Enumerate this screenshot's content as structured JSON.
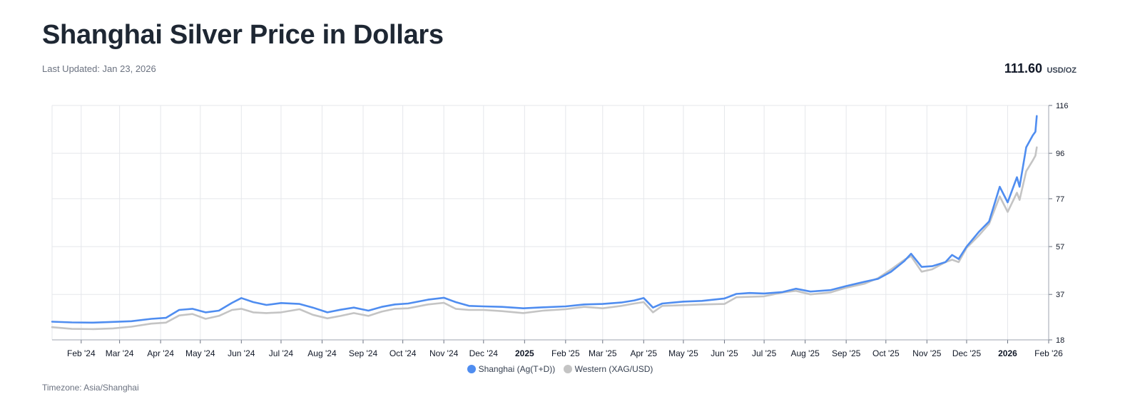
{
  "header": {
    "title": "Shanghai Silver Price in Dollars",
    "last_updated": "Last Updated: Jan 23, 2026",
    "price_value": "111.60",
    "price_unit": "USD/OZ"
  },
  "footer": {
    "timezone": "Timezone: Asia/Shanghai"
  },
  "colors": {
    "shanghai": "#4f8df0",
    "western": "#c4c4c4",
    "grid": "#e5e7eb"
  },
  "chart_data": {
    "type": "line",
    "title": "Shanghai Silver Price in Dollars",
    "xlabel": "",
    "ylabel": "",
    "grid": true,
    "legend_position": "bottom-center",
    "y_axis_position": "right",
    "ylim": [
      18,
      116
    ],
    "yticks": [
      "116",
      "96",
      "77",
      "57",
      "37",
      "18"
    ],
    "xlim": [
      "2024-01-10",
      "2026-02-01"
    ],
    "xticks": [
      {
        "date": "2024-02-01",
        "label": "Feb '24"
      },
      {
        "date": "2024-03-01",
        "label": "Mar '24"
      },
      {
        "date": "2024-04-01",
        "label": "Apr '24"
      },
      {
        "date": "2024-05-01",
        "label": "May '24"
      },
      {
        "date": "2024-06-01",
        "label": "Jun '24"
      },
      {
        "date": "2024-07-01",
        "label": "Jul '24"
      },
      {
        "date": "2024-08-01",
        "label": "Aug '24"
      },
      {
        "date": "2024-09-01",
        "label": "Sep '24"
      },
      {
        "date": "2024-10-01",
        "label": "Oct '24"
      },
      {
        "date": "2024-11-01",
        "label": "Nov '24"
      },
      {
        "date": "2024-12-01",
        "label": "Dec '24"
      },
      {
        "date": "2025-01-01",
        "label": "2025",
        "bold": true
      },
      {
        "date": "2025-02-01",
        "label": "Feb '25"
      },
      {
        "date": "2025-03-01",
        "label": "Mar '25"
      },
      {
        "date": "2025-04-01",
        "label": "Apr '25"
      },
      {
        "date": "2025-05-01",
        "label": "May '25"
      },
      {
        "date": "2025-06-01",
        "label": "Jun '25"
      },
      {
        "date": "2025-07-01",
        "label": "Jul '25"
      },
      {
        "date": "2025-08-01",
        "label": "Aug '25"
      },
      {
        "date": "2025-09-01",
        "label": "Sep '25"
      },
      {
        "date": "2025-10-01",
        "label": "Oct '25"
      },
      {
        "date": "2025-11-01",
        "label": "Nov '25"
      },
      {
        "date": "2025-12-01",
        "label": "Dec '25"
      },
      {
        "date": "2026-01-01",
        "label": "2026",
        "bold": true
      },
      {
        "date": "2026-02-01",
        "label": "Feb '26"
      }
    ],
    "series": [
      {
        "name": "Shanghai (Ag(T+D))",
        "points": [
          [
            "2024-01-10",
            25.6
          ],
          [
            "2024-01-25",
            25.3
          ],
          [
            "2024-02-10",
            25.2
          ],
          [
            "2024-02-25",
            25.5
          ],
          [
            "2024-03-10",
            25.8
          ],
          [
            "2024-03-25",
            26.8
          ],
          [
            "2024-04-05",
            27.2
          ],
          [
            "2024-04-15",
            30.5
          ],
          [
            "2024-04-25",
            31.0
          ],
          [
            "2024-05-05",
            29.5
          ],
          [
            "2024-05-15",
            30.2
          ],
          [
            "2024-05-25",
            33.5
          ],
          [
            "2024-06-01",
            35.5
          ],
          [
            "2024-06-10",
            33.8
          ],
          [
            "2024-06-20",
            32.6
          ],
          [
            "2024-07-01",
            33.4
          ],
          [
            "2024-07-15",
            33.0
          ],
          [
            "2024-07-25",
            31.5
          ],
          [
            "2024-08-05",
            29.5
          ],
          [
            "2024-08-15",
            30.6
          ],
          [
            "2024-08-25",
            31.5
          ],
          [
            "2024-09-05",
            30.2
          ],
          [
            "2024-09-15",
            31.8
          ],
          [
            "2024-09-25",
            32.8
          ],
          [
            "2024-10-05",
            33.2
          ],
          [
            "2024-10-20",
            34.8
          ],
          [
            "2024-11-01",
            35.6
          ],
          [
            "2024-11-10",
            33.8
          ],
          [
            "2024-11-20",
            32.2
          ],
          [
            "2024-12-01",
            32.0
          ],
          [
            "2024-12-15",
            31.8
          ],
          [
            "2024-12-31",
            31.2
          ],
          [
            "2025-01-15",
            31.6
          ],
          [
            "2025-02-01",
            32.0
          ],
          [
            "2025-02-15",
            32.8
          ],
          [
            "2025-03-01",
            33.0
          ],
          [
            "2025-03-15",
            33.6
          ],
          [
            "2025-03-25",
            34.5
          ],
          [
            "2025-04-01",
            35.5
          ],
          [
            "2025-04-08",
            31.5
          ],
          [
            "2025-04-15",
            33.2
          ],
          [
            "2025-05-01",
            34.0
          ],
          [
            "2025-05-15",
            34.3
          ],
          [
            "2025-06-01",
            35.3
          ],
          [
            "2025-06-10",
            37.2
          ],
          [
            "2025-06-20",
            37.6
          ],
          [
            "2025-07-01",
            37.4
          ],
          [
            "2025-07-15",
            38.0
          ],
          [
            "2025-07-25",
            39.4
          ],
          [
            "2025-08-05",
            38.2
          ],
          [
            "2025-08-20",
            38.8
          ],
          [
            "2025-09-01",
            40.5
          ],
          [
            "2025-09-15",
            42.3
          ],
          [
            "2025-09-25",
            43.5
          ],
          [
            "2025-10-05",
            46.5
          ],
          [
            "2025-10-15",
            51.0
          ],
          [
            "2025-10-20",
            54.0
          ],
          [
            "2025-10-28",
            48.5
          ],
          [
            "2025-11-05",
            48.8
          ],
          [
            "2025-11-15",
            50.5
          ],
          [
            "2025-11-20",
            53.5
          ],
          [
            "2025-11-25",
            51.8
          ],
          [
            "2025-12-01",
            57.0
          ],
          [
            "2025-12-10",
            63.0
          ],
          [
            "2025-12-18",
            67.5
          ],
          [
            "2025-12-26",
            82.0
          ],
          [
            "2026-01-01",
            75.5
          ],
          [
            "2026-01-08",
            86.0
          ],
          [
            "2026-01-10",
            82.0
          ],
          [
            "2026-01-15",
            98.5
          ],
          [
            "2026-01-20",
            103.5
          ],
          [
            "2026-01-22",
            105.0
          ],
          [
            "2026-01-23",
            111.6
          ]
        ]
      },
      {
        "name": "Western (XAG/USD)",
        "points": [
          [
            "2024-01-10",
            23.3
          ],
          [
            "2024-01-25",
            22.6
          ],
          [
            "2024-02-10",
            22.5
          ],
          [
            "2024-02-25",
            22.8
          ],
          [
            "2024-03-10",
            23.5
          ],
          [
            "2024-03-25",
            24.8
          ],
          [
            "2024-04-05",
            25.2
          ],
          [
            "2024-04-15",
            28.2
          ],
          [
            "2024-04-25",
            28.8
          ],
          [
            "2024-05-05",
            26.8
          ],
          [
            "2024-05-15",
            28.0
          ],
          [
            "2024-05-25",
            30.5
          ],
          [
            "2024-06-01",
            31.0
          ],
          [
            "2024-06-10",
            29.5
          ],
          [
            "2024-06-20",
            29.2
          ],
          [
            "2024-07-01",
            29.5
          ],
          [
            "2024-07-15",
            30.8
          ],
          [
            "2024-07-25",
            28.5
          ],
          [
            "2024-08-05",
            27.0
          ],
          [
            "2024-08-15",
            28.0
          ],
          [
            "2024-08-25",
            29.2
          ],
          [
            "2024-09-05",
            28.0
          ],
          [
            "2024-09-15",
            29.8
          ],
          [
            "2024-09-25",
            31.0
          ],
          [
            "2024-10-05",
            31.2
          ],
          [
            "2024-10-20",
            32.8
          ],
          [
            "2024-11-01",
            33.5
          ],
          [
            "2024-11-10",
            31.0
          ],
          [
            "2024-11-20",
            30.5
          ],
          [
            "2024-12-01",
            30.5
          ],
          [
            "2024-12-15",
            30.0
          ],
          [
            "2024-12-31",
            29.2
          ],
          [
            "2025-01-15",
            30.2
          ],
          [
            "2025-02-01",
            30.8
          ],
          [
            "2025-02-15",
            31.8
          ],
          [
            "2025-03-01",
            31.2
          ],
          [
            "2025-03-15",
            32.2
          ],
          [
            "2025-03-25",
            33.2
          ],
          [
            "2025-04-01",
            33.8
          ],
          [
            "2025-04-08",
            29.5
          ],
          [
            "2025-04-15",
            32.2
          ],
          [
            "2025-05-01",
            32.5
          ],
          [
            "2025-05-15",
            32.8
          ],
          [
            "2025-06-01",
            33.0
          ],
          [
            "2025-06-10",
            35.8
          ],
          [
            "2025-06-20",
            36.0
          ],
          [
            "2025-07-01",
            36.2
          ],
          [
            "2025-07-15",
            37.8
          ],
          [
            "2025-07-25",
            38.5
          ],
          [
            "2025-08-05",
            37.0
          ],
          [
            "2025-08-20",
            37.8
          ],
          [
            "2025-09-01",
            39.8
          ],
          [
            "2025-09-15",
            41.5
          ],
          [
            "2025-09-25",
            43.8
          ],
          [
            "2025-10-05",
            47.5
          ],
          [
            "2025-10-15",
            51.5
          ],
          [
            "2025-10-20",
            53.0
          ],
          [
            "2025-10-28",
            46.5
          ],
          [
            "2025-11-05",
            47.5
          ],
          [
            "2025-11-15",
            50.5
          ],
          [
            "2025-11-20",
            51.5
          ],
          [
            "2025-11-25",
            50.5
          ],
          [
            "2025-12-01",
            56.5
          ],
          [
            "2025-12-10",
            61.5
          ],
          [
            "2025-12-18",
            66.5
          ],
          [
            "2025-12-26",
            78.0
          ],
          [
            "2026-01-01",
            71.5
          ],
          [
            "2026-01-08",
            79.5
          ],
          [
            "2026-01-10",
            76.5
          ],
          [
            "2026-01-15",
            88.5
          ],
          [
            "2026-01-20",
            93.0
          ],
          [
            "2026-01-22",
            95.0
          ],
          [
            "2026-01-23",
            98.5
          ]
        ]
      }
    ]
  }
}
